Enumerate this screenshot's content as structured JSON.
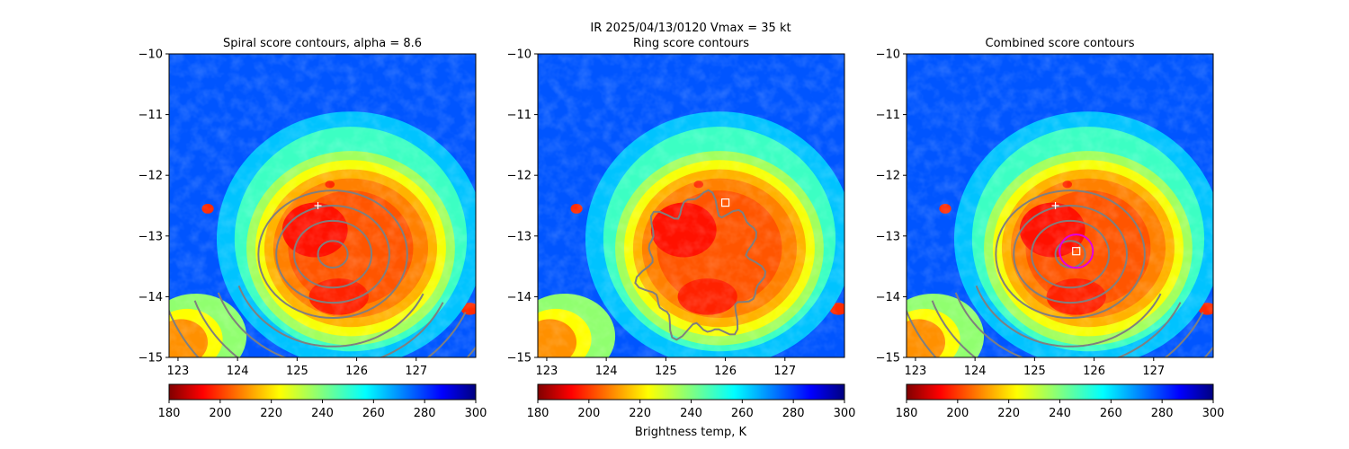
{
  "figure": {
    "suptitle_line1": "IR  2025/04/13/0120    Vmax = 35 kt",
    "colorbar_label": "Brightness temp, K"
  },
  "colors": {
    "contour": "#7f7f7f",
    "ring_marker": "#e000e0",
    "marker": "#ffffff"
  },
  "chart_data": [
    {
      "type": "heatmap",
      "title": "Spiral score contours, alpha =  8.6",
      "xlim": [
        122.85,
        128.0
      ],
      "ylim": [
        -15,
        -10
      ],
      "xticks": [
        123,
        124,
        125,
        126,
        127
      ],
      "yticks": [
        -10,
        -11,
        -12,
        -13,
        -14,
        -15
      ],
      "colorbar": {
        "range": [
          180,
          300
        ],
        "ticks": [
          180,
          200,
          220,
          240,
          260,
          280,
          300
        ],
        "colormap": "jet_r"
      },
      "field": {
        "center": [
          125.9,
          -13.2
        ],
        "cold_core_temp_K": 205,
        "background_temp_K": 275
      },
      "contour_center": [
        125.6,
        -13.3
      ],
      "markers": [
        {
          "symbol": "plus",
          "x": 125.35,
          "y": -12.5
        }
      ]
    },
    {
      "type": "heatmap",
      "title": "Ring score contours",
      "xlim": [
        122.85,
        128.0
      ],
      "ylim": [
        -15,
        -10
      ],
      "xticks": [
        123,
        124,
        125,
        126,
        127
      ],
      "yticks": [
        -10,
        -11,
        -12,
        -13,
        -14,
        -15
      ],
      "colorbar": {
        "range": [
          180,
          300
        ],
        "ticks": [
          180,
          200,
          220,
          240,
          260,
          280,
          300
        ],
        "colormap": "jet_r"
      },
      "field": {
        "center": [
          125.9,
          -13.2
        ],
        "cold_core_temp_K": 205,
        "background_temp_K": 275
      },
      "contour_center": [
        125.6,
        -13.5
      ],
      "markers": [
        {
          "symbol": "square",
          "x": 126.0,
          "y": -12.45
        }
      ]
    },
    {
      "type": "heatmap",
      "title": "Combined score contours",
      "xlim": [
        122.85,
        128.0
      ],
      "ylim": [
        -15,
        -10
      ],
      "xticks": [
        123,
        124,
        125,
        126,
        127
      ],
      "yticks": [
        -10,
        -11,
        -12,
        -13,
        -14,
        -15
      ],
      "colorbar": {
        "range": [
          180,
          300
        ],
        "ticks": [
          180,
          200,
          220,
          240,
          260,
          280,
          300
        ],
        "colormap": "jet_r"
      },
      "field": {
        "center": [
          125.9,
          -13.2
        ],
        "cold_core_temp_K": 205,
        "background_temp_K": 275
      },
      "contour_center": [
        125.6,
        -13.3
      ],
      "markers": [
        {
          "symbol": "plus",
          "x": 125.35,
          "y": -12.5
        },
        {
          "symbol": "square",
          "x": 125.7,
          "y": -13.25
        },
        {
          "symbol": "circle",
          "x": 125.7,
          "y": -13.25,
          "radius_deg": 0.28
        }
      ]
    }
  ]
}
